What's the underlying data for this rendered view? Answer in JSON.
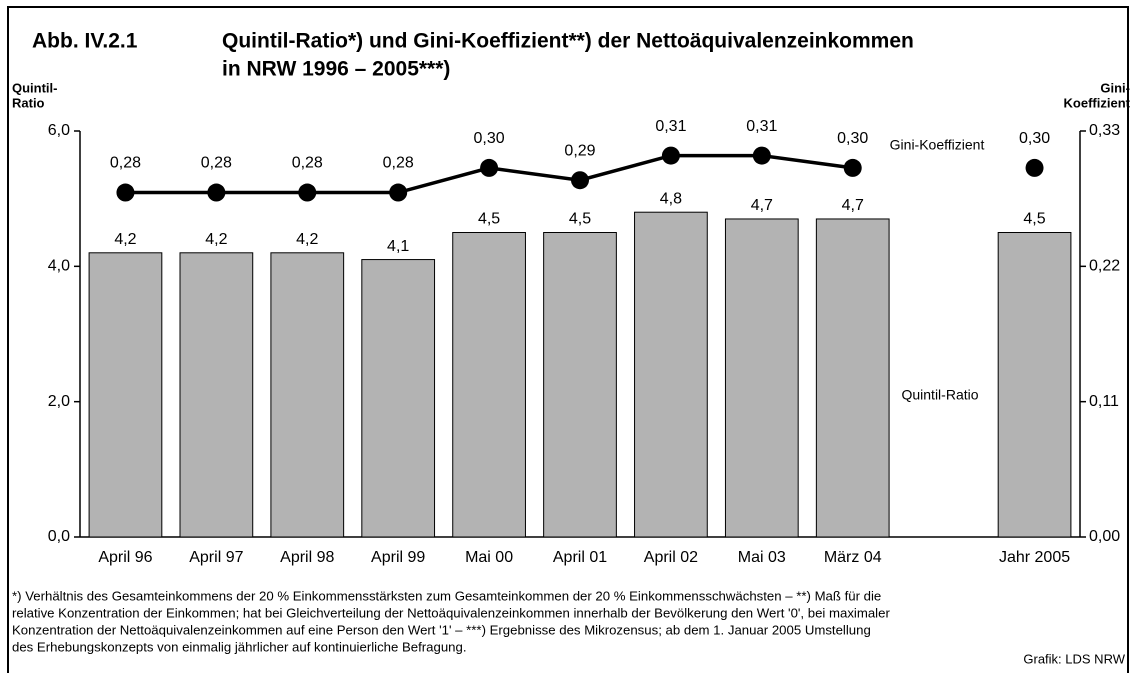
{
  "chart_data": {
    "type": "bar_line",
    "figure_label": "Abb. IV.2.1",
    "title": [
      "Quintil-Ratio*) und Gini-Koeffizient**) der Nettoäquivalenzeinkommen",
      "in NRW 1996 – 2005***)"
    ],
    "y_label": [
      "Quintil-",
      "Ratio"
    ],
    "y2_label": [
      "Gini-",
      "Koeffizient"
    ],
    "categories": [
      "April 96",
      "April 97",
      "April 98",
      "April 99",
      "Mai 00",
      "April 01",
      "April 02",
      "Mai 03",
      "März 04",
      null,
      "Jahr 2005"
    ],
    "series": [
      {
        "name": "Quintil-Ratio",
        "type": "bar",
        "color": "#b3b3b3",
        "values": [
          4.2,
          4.2,
          4.2,
          4.1,
          4.5,
          4.5,
          4.8,
          4.7,
          4.7,
          null,
          4.5
        ],
        "value_labels": [
          "4,2",
          "4,2",
          "4,2",
          "4,1",
          "4,5",
          "4,5",
          "4,8",
          "4,7",
          "4,7",
          null,
          "4,5"
        ]
      },
      {
        "name": "Gini-Koeffizient",
        "type": "line",
        "color": "#000000",
        "axis": "y2",
        "values": [
          0.28,
          0.28,
          0.28,
          0.28,
          0.3,
          0.29,
          0.31,
          0.31,
          0.3,
          null,
          0.3
        ],
        "value_labels": [
          "0,28",
          "0,28",
          "0,28",
          "0,28",
          "0,30",
          "0,29",
          "0,31",
          "0,31",
          "0,30",
          null,
          "0,30"
        ]
      }
    ],
    "ylim": [
      0,
      6
    ],
    "yticks": [
      {
        "value": 0,
        "label": "0,0"
      },
      {
        "value": 2,
        "label": "2,0"
      },
      {
        "value": 4,
        "label": "4,0"
      },
      {
        "value": 6,
        "label": "6,0"
      }
    ],
    "y2lim": [
      0,
      0.33
    ],
    "y2ticks": [
      {
        "value": 0,
        "label": "0,00"
      },
      {
        "value": 0.11,
        "label": "0,11"
      },
      {
        "value": 0.22,
        "label": "0,22"
      },
      {
        "value": 0.33,
        "label": "0,33"
      }
    ],
    "grid": false,
    "notes": [
      "*) Verhältnis des Gesamteinkommens der 20 % Einkommensstärksten zum Gesamteinkommen der 20 % Einkommensschwächsten – **) Maß für die",
      "relative Konzentration der Einkommen; hat bei Gleichverteilung der Nettoäquivalenzeinkommen innerhalb der Bevölkerung den Wert '0', bei maximaler",
      "Konzentration der Nettoäquivalenzeinkommen auf eine Person den Wert '1' – ***) Ergebnisse des Mikrozensus; ab dem 1. Januar 2005 Umstellung",
      "des Erhebungskonzepts von einmalig jährlicher auf kontinuierliche Befragung."
    ],
    "source": "Grafik: LDS NRW"
  }
}
